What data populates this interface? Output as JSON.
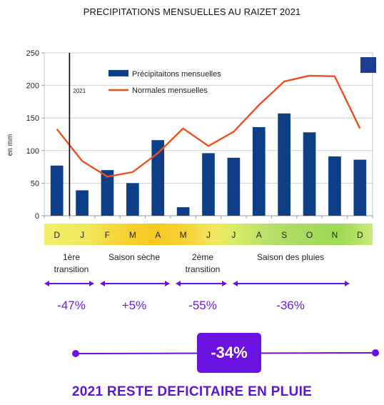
{
  "title": "PRECIPITATIONS MENSUELLES AU RAIZET 2021",
  "colors": {
    "bar": "#0e3f86",
    "line": "#f0501e",
    "accent": "#6a12e0"
  },
  "chart_data": {
    "type": "bar",
    "categories": [
      "D",
      "J",
      "F",
      "M",
      "A",
      "M",
      "J",
      "J",
      "A",
      "S",
      "O",
      "N",
      "D"
    ],
    "ylabel": "en mm",
    "ylim": [
      0,
      250
    ],
    "yticks": [
      0,
      50,
      100,
      150,
      200,
      250
    ],
    "grid": true,
    "legend_position": "top-center",
    "year_marker_label": "2021",
    "series": [
      {
        "name": "Précipitaitons mensuelles",
        "type": "bar",
        "values": [
          77,
          39,
          70,
          50,
          116,
          13,
          96,
          89,
          136,
          157,
          128,
          91,
          86
        ]
      },
      {
        "name": "Normales mensuelles",
        "type": "line",
        "values": [
          133,
          84,
          60,
          67,
          96,
          134,
          107,
          129,
          170,
          206,
          215,
          214,
          134
        ]
      }
    ]
  },
  "seasons": [
    {
      "label_lines": [
        "1ère",
        "transition"
      ],
      "change": "-47%"
    },
    {
      "label_lines": [
        "Saison sèche"
      ],
      "change": "+5%"
    },
    {
      "label_lines": [
        "2ème",
        "transition"
      ],
      "change": "-55%"
    },
    {
      "label_lines": [
        "Saison des pluies"
      ],
      "change": "-36%"
    }
  ],
  "total_change": "-34%",
  "conclusion": "2021 RESTE DEFICITAIRE EN PLUIE"
}
